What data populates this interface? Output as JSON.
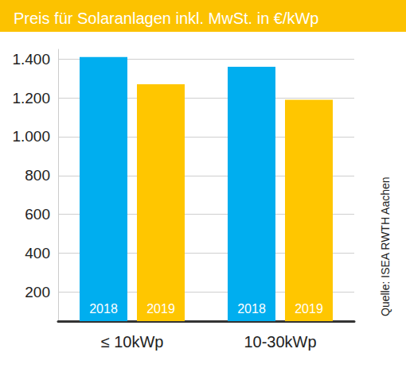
{
  "chart_data": {
    "type": "bar",
    "title": "Preis für Solaranlagen inkl. MwSt. in €/kWp",
    "categories": [
      "≤ 10kWp",
      "10-30kWp"
    ],
    "series": [
      {
        "name": "2018",
        "color": "#00aeef",
        "values": [
          1410,
          1360
        ]
      },
      {
        "name": "2019",
        "color": "#ffc600",
        "values": [
          1270,
          1190
        ]
      }
    ],
    "ylim": [
      50,
      1450
    ],
    "yticks": [
      200,
      400,
      600,
      800,
      {
        "value": 1000,
        "label": "1.000"
      },
      {
        "value": 1200,
        "label": "1.200"
      },
      {
        "value": 1400,
        "label": "1.400"
      }
    ],
    "grid": true,
    "annotations": [
      "Quelle: ISEA RWTH Aachen"
    ]
  }
}
